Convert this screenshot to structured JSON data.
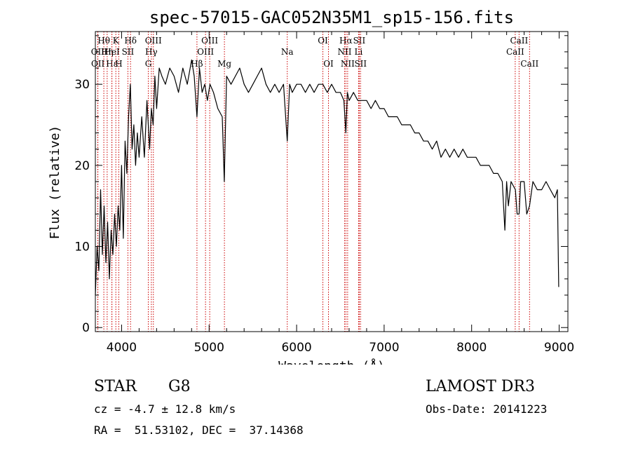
{
  "chart_data": {
    "type": "line",
    "title": "spec-57015-GAC052N35M1_sp15-156.fits",
    "xlabel": "Wavelength (Å)",
    "ylabel": "Flux (relative)",
    "xlim": [
      3700,
      9100
    ],
    "ylim": [
      -0.5,
      36.5
    ],
    "xticks": [
      4000,
      5000,
      6000,
      7000,
      8000,
      9000
    ],
    "yticks": [
      0,
      10,
      20,
      30
    ],
    "series": [
      {
        "name": "spectrum",
        "x": [
          3700,
          3720,
          3740,
          3760,
          3780,
          3800,
          3820,
          3840,
          3860,
          3880,
          3900,
          3920,
          3940,
          3960,
          3980,
          4000,
          4020,
          4040,
          4060,
          4080,
          4100,
          4120,
          4140,
          4160,
          4180,
          4200,
          4230,
          4260,
          4290,
          4320,
          4340,
          4360,
          4380,
          4400,
          4430,
          4460,
          4500,
          4550,
          4600,
          4650,
          4700,
          4750,
          4800,
          4830,
          4861,
          4890,
          4920,
          4950,
          4980,
          5010,
          5050,
          5100,
          5150,
          5173,
          5200,
          5250,
          5300,
          5350,
          5400,
          5450,
          5500,
          5550,
          5600,
          5650,
          5700,
          5750,
          5800,
          5850,
          5893,
          5920,
          5950,
          6000,
          6050,
          6100,
          6150,
          6200,
          6250,
          6300,
          6350,
          6400,
          6450,
          6500,
          6540,
          6563,
          6580,
          6600,
          6650,
          6700,
          6750,
          6800,
          6850,
          6900,
          6950,
          7000,
          7050,
          7100,
          7150,
          7200,
          7250,
          7300,
          7350,
          7400,
          7450,
          7500,
          7550,
          7600,
          7650,
          7700,
          7750,
          7800,
          7850,
          7900,
          7950,
          8000,
          8050,
          8100,
          8150,
          8200,
          8250,
          8300,
          8350,
          8380,
          8400,
          8420,
          8450,
          8500,
          8520,
          8542,
          8560,
          8600,
          8630,
          8662,
          8700,
          8750,
          8800,
          8850,
          8900,
          8950,
          8980,
          8995
        ],
        "y": [
          4,
          10,
          7,
          17,
          9,
          15,
          8,
          13,
          6,
          12,
          9,
          14,
          10,
          15,
          12,
          20,
          11,
          23,
          19,
          26,
          30,
          22,
          25,
          20,
          24,
          21,
          26,
          21,
          28,
          22,
          27,
          25,
          31,
          27,
          32,
          31,
          30,
          32,
          31,
          29,
          32,
          30,
          33,
          31,
          26,
          32,
          29,
          30,
          28,
          30,
          29,
          27,
          26,
          18,
          31,
          30,
          31,
          32,
          30,
          29,
          30,
          31,
          32,
          30,
          29,
          30,
          29,
          30,
          23,
          30,
          29,
          30,
          30,
          29,
          30,
          29,
          30,
          30,
          29,
          30,
          29,
          29,
          28,
          24,
          29,
          28,
          29,
          28,
          28,
          28,
          27,
          28,
          27,
          27,
          26,
          26,
          26,
          25,
          25,
          25,
          24,
          24,
          23,
          23,
          22,
          23,
          21,
          22,
          21,
          22,
          21,
          22,
          21,
          21,
          21,
          20,
          20,
          20,
          19,
          19,
          18,
          12,
          18,
          15,
          18,
          17,
          14,
          14,
          18,
          18,
          14,
          15,
          18,
          17,
          17,
          18,
          17,
          16,
          17,
          5
        ]
      }
    ],
    "lines": [
      {
        "name": "Hθ",
        "x": 3797,
        "row": 0
      },
      {
        "name": "OII",
        "x": 3727,
        "row": 1
      },
      {
        "name": "OII",
        "x": 3729,
        "row": 2
      },
      {
        "name": "Hη",
        "x": 3835,
        "row": 1
      },
      {
        "name": "Hε",
        "x": 3889,
        "row": 2
      },
      {
        "name": "K",
        "x": 3934,
        "row": 0
      },
      {
        "name": "HeI",
        "x": 3889,
        "row": 1
      },
      {
        "name": "H",
        "x": 3968,
        "row": 2
      },
      {
        "name": "Hδ",
        "x": 4102,
        "row": 0
      },
      {
        "name": "SII",
        "x": 4072,
        "row": 1
      },
      {
        "name": "OIII",
        "x": 4363,
        "row": 0
      },
      {
        "name": "Hγ",
        "x": 4340,
        "row": 1
      },
      {
        "name": "G",
        "x": 4305,
        "row": 2
      },
      {
        "name": "OIII",
        "x": 5007,
        "row": 0
      },
      {
        "name": "OIII",
        "x": 4959,
        "row": 1
      },
      {
        "name": "Hβ",
        "x": 4861,
        "row": 2
      },
      {
        "name": "Mg",
        "x": 5175,
        "row": 2
      },
      {
        "name": "Na",
        "x": 5893,
        "row": 1
      },
      {
        "name": "OI",
        "x": 6300,
        "row": 0
      },
      {
        "name": "OI",
        "x": 6364,
        "row": 2
      },
      {
        "name": "Hα",
        "x": 6563,
        "row": 0
      },
      {
        "name": "NII",
        "x": 6548,
        "row": 1
      },
      {
        "name": "NII",
        "x": 6583,
        "row": 2
      },
      {
        "name": "SII",
        "x": 6716,
        "row": 0
      },
      {
        "name": "Li",
        "x": 6708,
        "row": 1
      },
      {
        "name": "SII",
        "x": 6731,
        "row": 2
      },
      {
        "name": "CaII",
        "x": 8542,
        "row": 0
      },
      {
        "name": "CaII",
        "x": 8498,
        "row": 1
      },
      {
        "name": "CaII",
        "x": 8662,
        "row": 2
      }
    ],
    "line_color": "#cc0000"
  },
  "info": {
    "class_label": "STAR",
    "subclass": "G8",
    "survey": "LAMOST DR3",
    "cz": "cz = -4.7 ± 12.8 km/s",
    "obs_date": "Obs-Date: 20141223",
    "radec": "RA =  51.53102, DEC =  37.14368"
  }
}
